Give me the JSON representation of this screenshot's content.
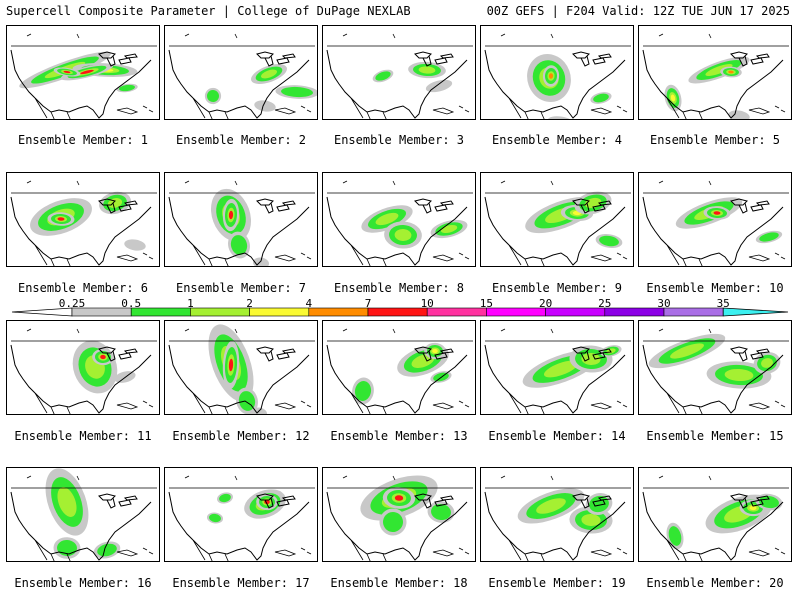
{
  "header": {
    "title": "Supercell Composite Parameter | College of DuPage NEXLAB",
    "run_info": "00Z GEFS | F204 Valid: 12Z TUE JUN 17 2025"
  },
  "colorbar": {
    "labels": [
      "0.25",
      "0.5",
      "1",
      "2",
      "4",
      "7",
      "10",
      "15",
      "20",
      "25",
      "30",
      "35"
    ],
    "colors": [
      "#ffffff",
      "#c8c8c8",
      "#32e632",
      "#a5f032",
      "#fafa32",
      "#ff8c00",
      "#ff1414",
      "#ff32a0",
      "#ff00ff",
      "#c800ff",
      "#8c00e6",
      "#aa6ee6",
      "#3cf0f0"
    ]
  },
  "members": [
    {
      "label": "Ensemble Member: 1"
    },
    {
      "label": "Ensemble Member: 2"
    },
    {
      "label": "Ensemble Member: 3"
    },
    {
      "label": "Ensemble Member: 4"
    },
    {
      "label": "Ensemble Member: 5"
    },
    {
      "label": "Ensemble Member: 6"
    },
    {
      "label": "Ensemble Member: 7"
    },
    {
      "label": "Ensemble Member: 8"
    },
    {
      "label": "Ensemble Member: 9"
    },
    {
      "label": "Ensemble Member: 10"
    },
    {
      "label": "Ensemble Member: 11"
    },
    {
      "label": "Ensemble Member: 12"
    },
    {
      "label": "Ensemble Member: 13"
    },
    {
      "label": "Ensemble Member: 14"
    },
    {
      "label": "Ensemble Member: 15"
    },
    {
      "label": "Ensemble Member: 16"
    },
    {
      "label": "Ensemble Member: 17"
    },
    {
      "label": "Ensemble Member: 18"
    },
    {
      "label": "Ensemble Member: 19"
    },
    {
      "label": "Ensemble Member: 20"
    }
  ]
}
